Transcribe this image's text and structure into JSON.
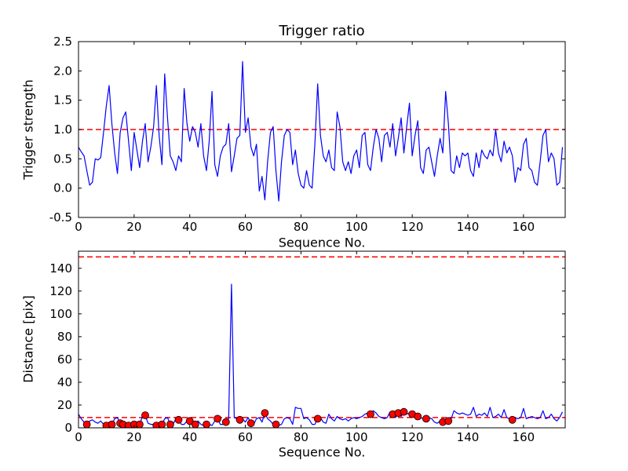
{
  "figure": {
    "background": "#ffffff"
  },
  "chart_data": [
    {
      "type": "line",
      "title": "Trigger ratio",
      "xlabel": "Sequence No.",
      "ylabel": "Trigger strength",
      "xlim": [
        0,
        175
      ],
      "ylim": [
        -0.5,
        2.5
      ],
      "grid": false,
      "legend": "none",
      "xticks": [
        0,
        20,
        40,
        60,
        80,
        100,
        120,
        140,
        160
      ],
      "xtick_labels": [
        "0",
        "20",
        "40",
        "60",
        "80",
        "100",
        "120",
        "140",
        "160"
      ],
      "yticks": [
        -0.5,
        0.0,
        0.5,
        1.0,
        1.5,
        2.0,
        2.5
      ],
      "ytick_labels": [
        "-0.5",
        "0.0",
        "0.5",
        "1.0",
        "1.5",
        "2.0",
        "2.5"
      ],
      "line_color": "#0000ff",
      "thresholds": [
        {
          "y": 1.0,
          "color": "#ff0000",
          "style": "dashed"
        }
      ],
      "x_start": 0,
      "x_step": 1,
      "values": [
        0.7,
        0.62,
        0.55,
        0.3,
        0.05,
        0.1,
        0.5,
        0.48,
        0.52,
        0.95,
        1.4,
        1.75,
        1.1,
        0.6,
        0.25,
        0.95,
        1.2,
        1.3,
        0.8,
        0.3,
        0.95,
        0.65,
        0.35,
        0.8,
        1.1,
        0.45,
        0.7,
        1.05,
        1.75,
        0.9,
        0.4,
        1.95,
        1.2,
        0.55,
        0.45,
        0.3,
        0.55,
        0.45,
        1.7,
        1.1,
        0.8,
        1.05,
        0.95,
        0.7,
        1.1,
        0.55,
        0.3,
        0.8,
        1.65,
        0.4,
        0.2,
        0.55,
        0.7,
        0.75,
        1.1,
        0.28,
        0.55,
        0.85,
        0.9,
        2.16,
        0.95,
        1.2,
        0.7,
        0.55,
        0.75,
        -0.05,
        0.2,
        -0.2,
        0.45,
        0.95,
        1.05,
        0.3,
        -0.22,
        0.45,
        0.9,
        1.0,
        0.95,
        0.4,
        0.65,
        0.25,
        0.05,
        0.0,
        0.3,
        0.05,
        0.0,
        0.75,
        1.78,
        0.9,
        0.55,
        0.45,
        0.65,
        0.35,
        0.3,
        1.3,
        1.05,
        0.45,
        0.3,
        0.45,
        0.25,
        0.55,
        0.65,
        0.35,
        0.9,
        0.95,
        0.4,
        0.3,
        0.7,
        1.0,
        0.85,
        0.45,
        0.9,
        0.95,
        0.7,
        1.1,
        0.55,
        0.85,
        1.2,
        0.6,
        1.05,
        1.45,
        0.55,
        0.9,
        1.15,
        0.35,
        0.25,
        0.65,
        0.7,
        0.45,
        0.2,
        0.55,
        0.85,
        0.6,
        1.65,
        1.1,
        0.3,
        0.25,
        0.55,
        0.35,
        0.6,
        0.55,
        0.6,
        0.3,
        0.2,
        0.6,
        0.35,
        0.65,
        0.55,
        0.5,
        0.65,
        0.55,
        1.0,
        0.6,
        0.45,
        0.8,
        0.6,
        0.7,
        0.55,
        0.1,
        0.35,
        0.3,
        0.75,
        0.85,
        0.35,
        0.3,
        0.1,
        0.05,
        0.45,
        0.9,
        1.0,
        0.45,
        0.6,
        0.5,
        0.05,
        0.1,
        0.7
      ]
    },
    {
      "type": "line+scatter",
      "title": "",
      "xlabel": "Sequence No.",
      "ylabel": "Distance [pix]",
      "xlim": [
        0,
        175
      ],
      "ylim": [
        0,
        155
      ],
      "grid": false,
      "legend": "none",
      "xticks": [
        0,
        20,
        40,
        60,
        80,
        100,
        120,
        140,
        160
      ],
      "xtick_labels": [
        "0",
        "20",
        "40",
        "60",
        "80",
        "100",
        "120",
        "140",
        "160"
      ],
      "yticks": [
        0,
        20,
        40,
        60,
        80,
        100,
        120,
        140
      ],
      "ytick_labels": [
        "0",
        "20",
        "40",
        "60",
        "80",
        "100",
        "120",
        "140"
      ],
      "line_color": "#0000ff",
      "thresholds": [
        {
          "y": 150,
          "color": "#ff0000",
          "style": "dashed"
        },
        {
          "y": 9,
          "color": "#ff0000",
          "style": "dashed"
        }
      ],
      "x_start": 0,
      "x_step": 1,
      "values": [
        12,
        8,
        5,
        3,
        6,
        7,
        5,
        4,
        6,
        3,
        2,
        5,
        3,
        8,
        9,
        4,
        3,
        3,
        2,
        3,
        3,
        2,
        3,
        10,
        11,
        4,
        3,
        3,
        2,
        3,
        3,
        8,
        9,
        3,
        3,
        8,
        7,
        3,
        3,
        6,
        6,
        2,
        3,
        6,
        3,
        2,
        3,
        3,
        2,
        6,
        8,
        3,
        3,
        5,
        8,
        126,
        9,
        8,
        7,
        8,
        5,
        9,
        4,
        3,
        8,
        9,
        5,
        13,
        8,
        6,
        3,
        3,
        2,
        3,
        8,
        9,
        8,
        3,
        18,
        17,
        17,
        8,
        9,
        7,
        3,
        3,
        8,
        9,
        5,
        4,
        12,
        8,
        6,
        10,
        8,
        7,
        8,
        6,
        8,
        9,
        8,
        9,
        10,
        12,
        13,
        12,
        15,
        13,
        10,
        9,
        8,
        9,
        14,
        12,
        9,
        13,
        10,
        14,
        12,
        13,
        12,
        13,
        10,
        9,
        8,
        8,
        9,
        8,
        5,
        4,
        6,
        5,
        4,
        6,
        8,
        15,
        13,
        12,
        13,
        12,
        11,
        12,
        18,
        10,
        12,
        11,
        13,
        10,
        18,
        9,
        10,
        12,
        9,
        16,
        9,
        8,
        7,
        9,
        8,
        9,
        17,
        8,
        9,
        10,
        9,
        8,
        9,
        15,
        8,
        9,
        12,
        8,
        6,
        9,
        14
      ],
      "scatter": {
        "color": "#ff0000",
        "edge_color": "#000000",
        "points": [
          [
            3,
            3
          ],
          [
            10,
            2
          ],
          [
            12,
            3
          ],
          [
            15,
            4
          ],
          [
            16,
            3
          ],
          [
            18,
            2
          ],
          [
            20,
            3
          ],
          [
            22,
            3
          ],
          [
            24,
            11
          ],
          [
            28,
            2
          ],
          [
            30,
            3
          ],
          [
            33,
            3
          ],
          [
            36,
            7
          ],
          [
            40,
            6
          ],
          [
            42,
            3
          ],
          [
            46,
            3
          ],
          [
            50,
            8
          ],
          [
            53,
            5
          ],
          [
            58,
            7
          ],
          [
            62,
            4
          ],
          [
            67,
            13
          ],
          [
            71,
            3
          ],
          [
            86,
            8
          ],
          [
            105,
            12
          ],
          [
            113,
            12
          ],
          [
            115,
            13
          ],
          [
            117,
            14
          ],
          [
            120,
            12
          ],
          [
            122,
            10
          ],
          [
            125,
            8
          ],
          [
            131,
            5
          ],
          [
            133,
            6
          ],
          [
            156,
            7
          ]
        ]
      }
    }
  ]
}
